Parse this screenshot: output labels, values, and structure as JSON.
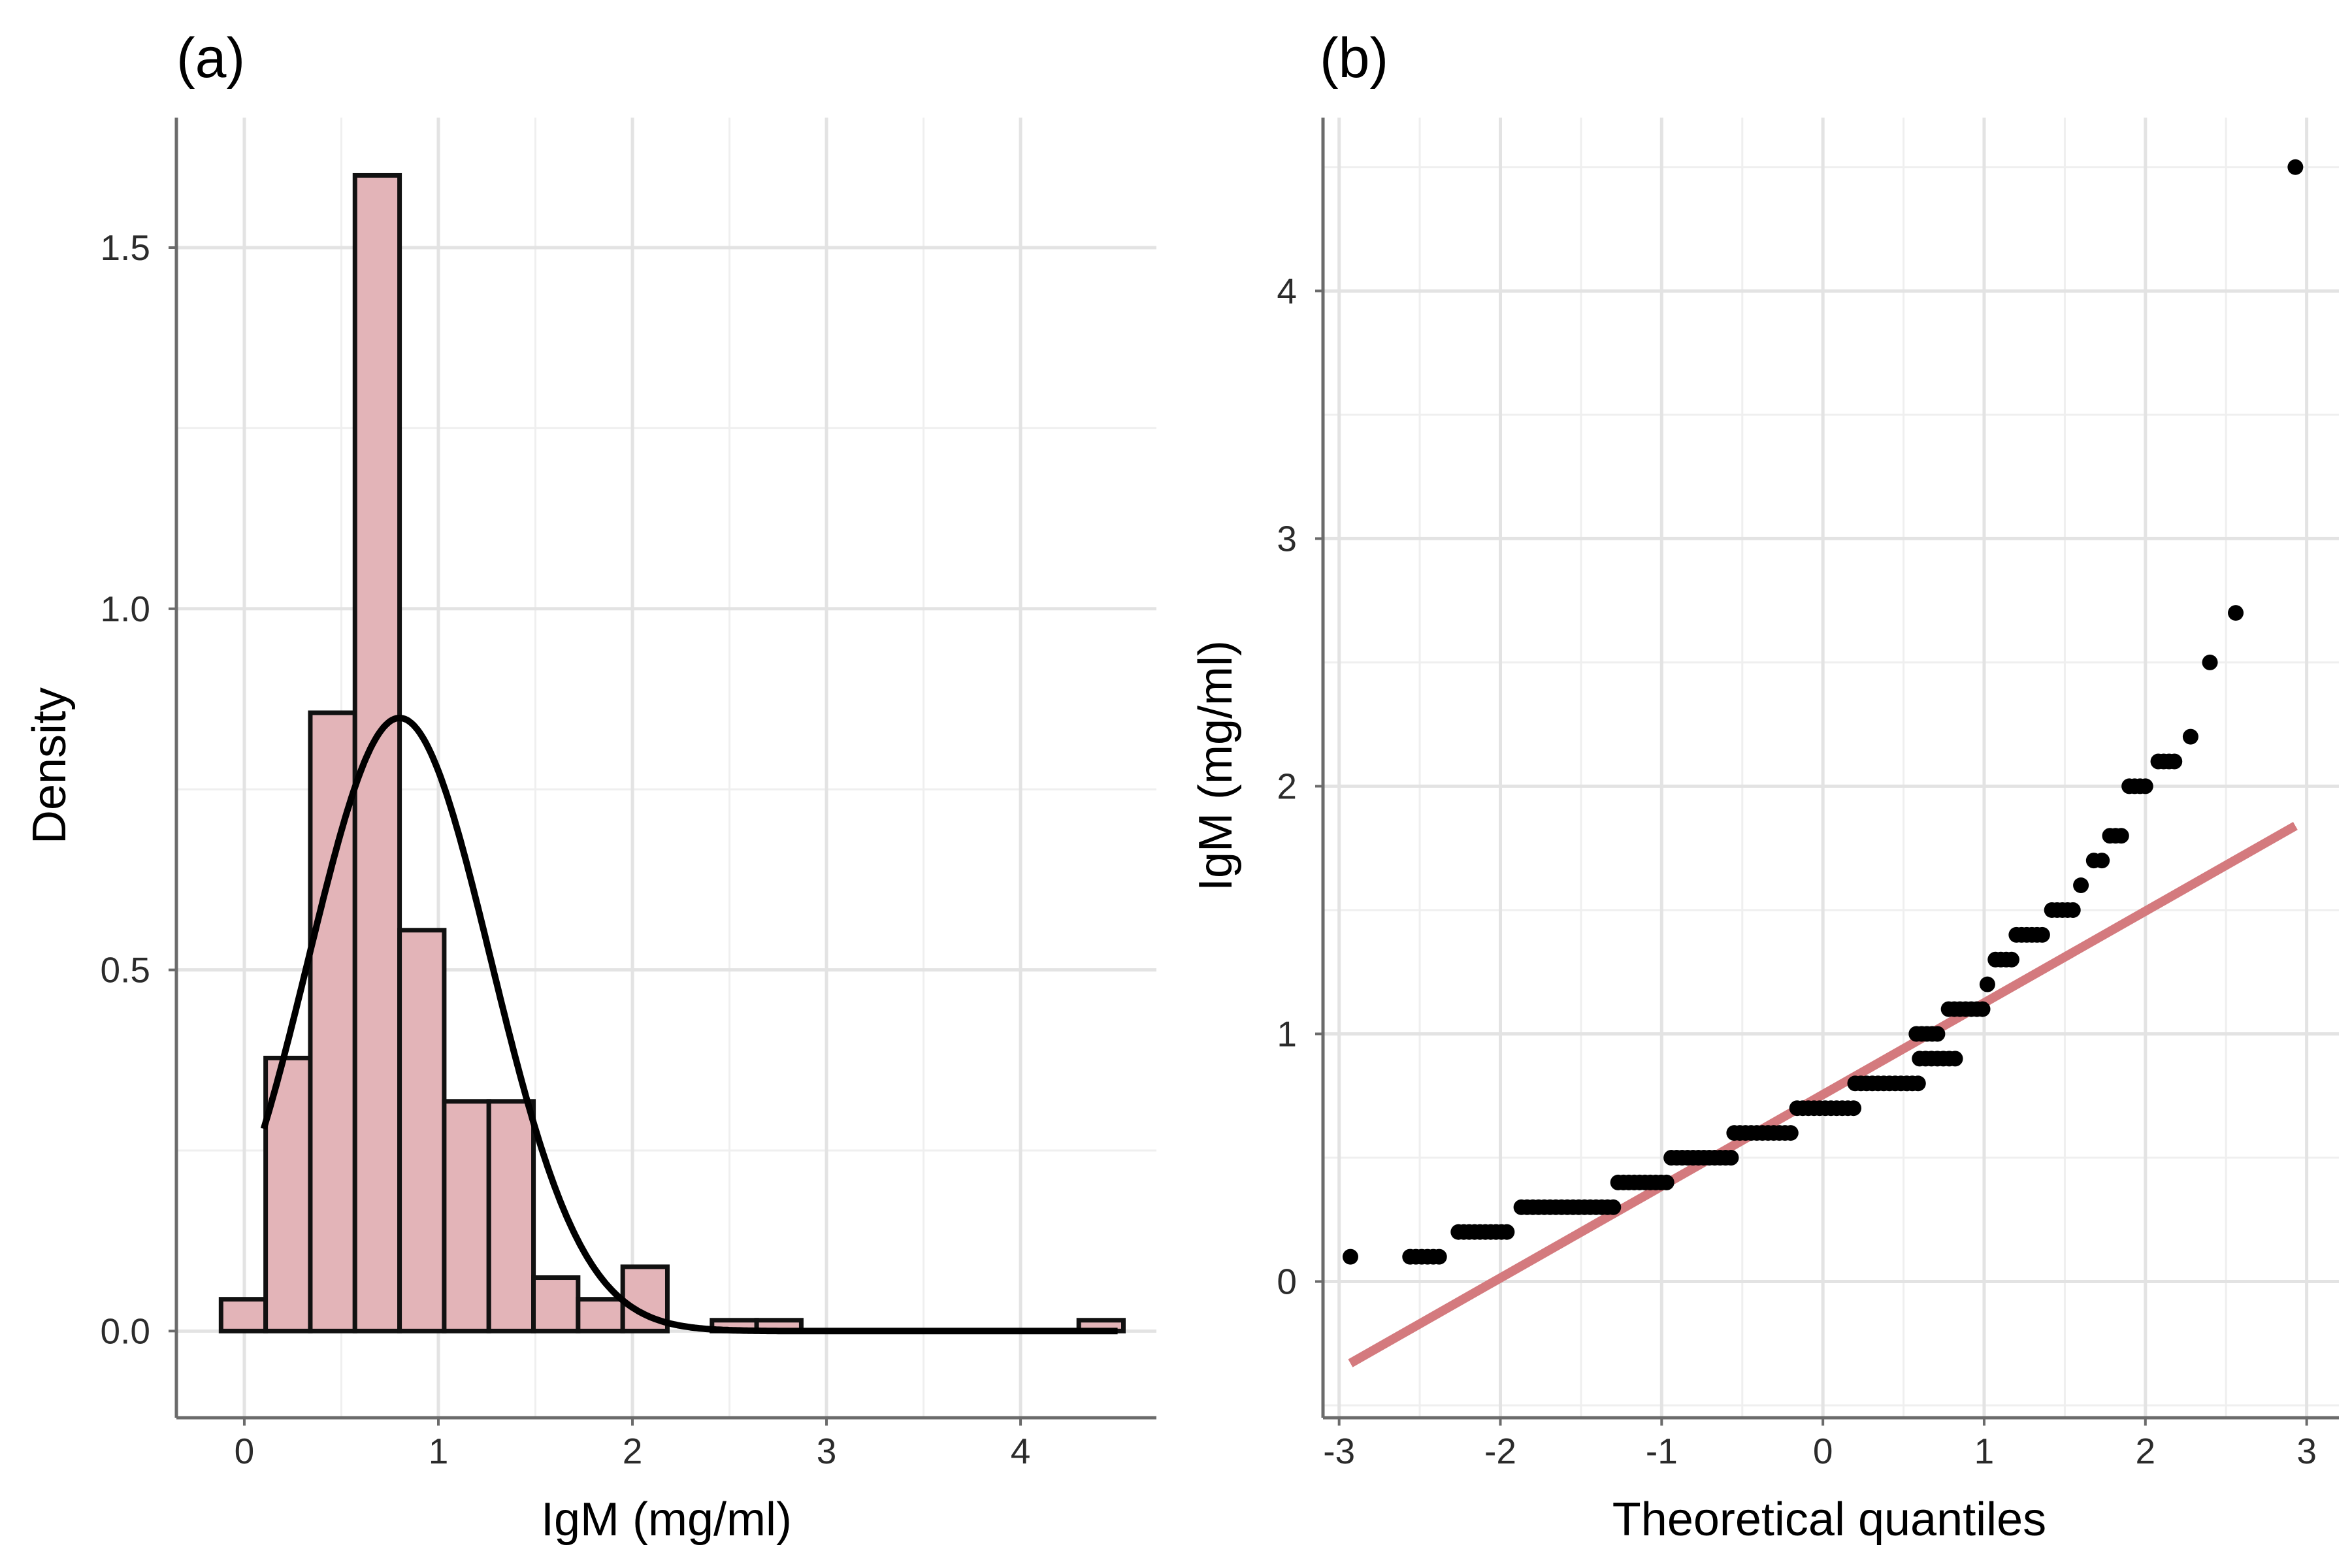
{
  "colors": {
    "bar_fill": "#e3b4b8",
    "bar_stroke": "#111111",
    "density_curve": "#000000",
    "qq_line": "#d47a7e",
    "points": "#000000"
  },
  "chart_data": [
    {
      "id": "a",
      "type": "bar",
      "panel_label": "(a)",
      "xlabel": "IgM (mg/ml)",
      "ylabel": "Density",
      "xlim": [
        -0.35,
        4.7
      ],
      "ylim": [
        -0.12,
        1.68
      ],
      "x_ticks": [
        0,
        1,
        2,
        3,
        4
      ],
      "x_tick_labels": [
        "0",
        "1",
        "2",
        "3",
        "4"
      ],
      "y_ticks": [
        0.0,
        0.5,
        1.0,
        1.5
      ],
      "y_tick_labels": [
        "0.0",
        "0.5",
        "1.0",
        "1.5"
      ],
      "grid": true,
      "bin_width": 0.23,
      "bins": [
        {
          "x0": -0.12,
          "density": 0.044
        },
        {
          "x0": 0.11,
          "density": 0.378
        },
        {
          "x0": 0.34,
          "density": 0.856
        },
        {
          "x0": 0.57,
          "density": 1.6
        },
        {
          "x0": 0.8,
          "density": 0.555
        },
        {
          "x0": 1.03,
          "density": 0.318
        },
        {
          "x0": 1.26,
          "density": 0.318
        },
        {
          "x0": 1.49,
          "density": 0.074
        },
        {
          "x0": 1.72,
          "density": 0.044
        },
        {
          "x0": 1.95,
          "density": 0.089
        },
        {
          "x0": 2.18,
          "density": 0.0
        },
        {
          "x0": 2.41,
          "density": 0.015
        },
        {
          "x0": 2.64,
          "density": 0.015
        },
        {
          "x0": 4.3,
          "density": 0.015
        }
      ],
      "normal_curve": {
        "mean": 0.8,
        "sd": 0.47,
        "x_from": 0.1,
        "x_to": 4.5
      }
    },
    {
      "id": "b",
      "type": "scatter",
      "panel_label": "(b)",
      "xlabel": "Theoretical quantiles",
      "ylabel": "IgM (mg/ml)",
      "xlim": [
        -3.1,
        3.2
      ],
      "ylim": [
        -0.55,
        4.7
      ],
      "x_ticks": [
        -3,
        -2,
        -1,
        0,
        1,
        2,
        3
      ],
      "x_tick_labels": [
        "-3",
        "-2",
        "-1",
        "0",
        "1",
        "2",
        "3"
      ],
      "y_ticks": [
        0,
        1,
        2,
        3,
        4
      ],
      "y_tick_labels": [
        "0",
        "1",
        "2",
        "3",
        "4"
      ],
      "grid": true,
      "qq_line": {
        "x": [
          -2.93,
          2.93
        ],
        "y": [
          -0.33,
          1.84
        ]
      },
      "point_groups": [
        {
          "y": 0.1,
          "x_from": -2.93,
          "x_to": -2.93
        },
        {
          "y": 0.1,
          "x_from": -2.56,
          "x_to": -2.38
        },
        {
          "y": 0.2,
          "x_from": -2.26,
          "x_to": -1.96
        },
        {
          "y": 0.3,
          "x_from": -1.87,
          "x_to": -1.3
        },
        {
          "y": 0.4,
          "x_from": -1.27,
          "x_to": -0.97
        },
        {
          "y": 0.5,
          "x_from": -0.94,
          "x_to": -0.57
        },
        {
          "y": 0.6,
          "x_from": -0.55,
          "x_to": -0.2
        },
        {
          "y": 0.7,
          "x_from": -0.16,
          "x_to": 0.19
        },
        {
          "y": 0.8,
          "x_from": 0.2,
          "x_to": 0.59
        },
        {
          "y": 0.9,
          "x_from": 0.6,
          "x_to": 0.82
        },
        {
          "y": 1.0,
          "x_from": 0.58,
          "x_to": 0.71
        },
        {
          "y": 1.1,
          "x_from": 0.78,
          "x_to": 0.99
        },
        {
          "y": 1.2,
          "x_from": 1.02,
          "x_to": 1.02
        },
        {
          "y": 1.3,
          "x_from": 1.07,
          "x_to": 1.17
        },
        {
          "y": 1.4,
          "x_from": 1.2,
          "x_to": 1.36
        },
        {
          "y": 1.5,
          "x_from": 1.42,
          "x_to": 1.55
        },
        {
          "y": 1.6,
          "x_from": 1.6,
          "x_to": 1.6
        },
        {
          "y": 1.7,
          "x_from": 1.68,
          "x_to": 1.73
        },
        {
          "y": 1.8,
          "x_from": 1.78,
          "x_to": 1.85
        },
        {
          "y": 2.0,
          "x_from": 1.9,
          "x_to": 2.0
        },
        {
          "y": 2.1,
          "x_from": 2.08,
          "x_to": 2.18
        },
        {
          "y": 2.2,
          "x_from": 2.28,
          "x_to": 2.28
        },
        {
          "y": 2.5,
          "x_from": 2.4,
          "x_to": 2.4
        },
        {
          "y": 2.7,
          "x_from": 2.56,
          "x_to": 2.56
        },
        {
          "y": 4.5,
          "x_from": 2.93,
          "x_to": 2.93
        }
      ]
    }
  ]
}
